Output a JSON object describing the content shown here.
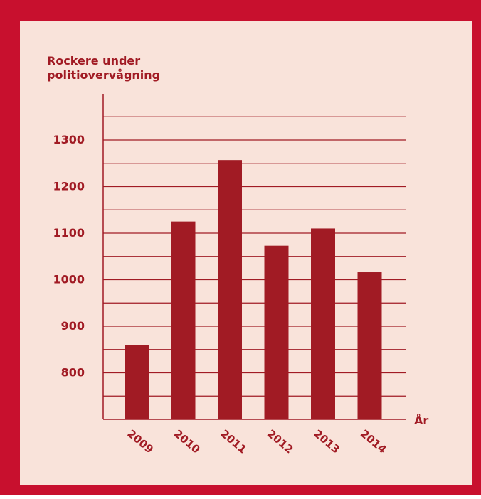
{
  "colors": {
    "frame": "#c8102e",
    "panel": "#f9e3da",
    "bar": "#a11b24",
    "grid": "#a11b24",
    "text": "#a11b24"
  },
  "chart_data": {
    "type": "bar",
    "title": "Rockere under politiovervågning",
    "title_lines": [
      "Rockere under",
      "politiovervågning"
    ],
    "xlabel": "År",
    "ylabel": "",
    "categories": [
      "2009",
      "2010",
      "2011",
      "2012",
      "2013",
      "2014"
    ],
    "values": [
      859,
      1125,
      1257,
      1073,
      1110,
      1016
    ],
    "yticks": [
      800,
      900,
      1000,
      1100,
      1200,
      1300
    ],
    "ylim": [
      700,
      1350
    ],
    "grid": true,
    "legend": "none"
  }
}
